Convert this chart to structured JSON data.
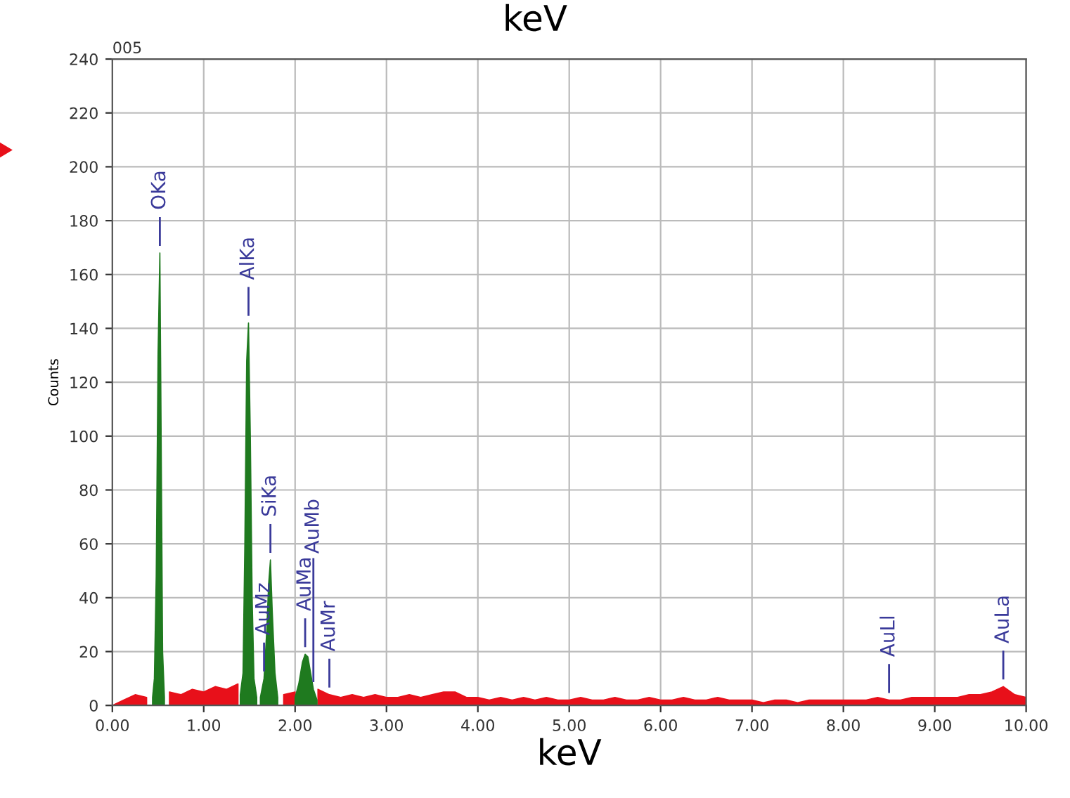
{
  "chart_data": {
    "type": "area",
    "title": "005",
    "xlabel": "keV",
    "ylabel": "Counts",
    "annotations": [
      "keV",
      {
        "text": "OKa",
        "x": 0.52,
        "y": 168
      },
      {
        "text": "AlKa",
        "x": 1.49,
        "y": 142
      },
      {
        "text": "AuMz",
        "x": 1.66,
        "y": 10
      },
      {
        "text": "SiKa",
        "x": 1.73,
        "y": 54
      },
      {
        "text": "AuMa",
        "x": 2.11,
        "y": 19
      },
      {
        "text": "AuMb",
        "x": 2.2,
        "y": 6
      },
      {
        "text": "AuMr",
        "x": 2.375,
        "y": 4
      },
      {
        "text": "AuLl",
        "x": 8.5,
        "y": 2
      },
      {
        "text": "AuLa",
        "x": 9.75,
        "y": 7
      }
    ],
    "series": [
      {
        "color": "#e8101a",
        "x": [
          0,
          0.125,
          0.25,
          0.375,
          0.5,
          0.625,
          0.75,
          0.875,
          1.0,
          1.125,
          1.25,
          1.375,
          1.5,
          1.625,
          1.75,
          1.875,
          2.0,
          2.125,
          2.25,
          2.375,
          2.5,
          2.625,
          2.75,
          2.875,
          3.0,
          3.125,
          3.25,
          3.375,
          3.5,
          3.625,
          3.75,
          3.875,
          4.0,
          4.125,
          4.25,
          4.375,
          4.5,
          4.625,
          4.75,
          4.875,
          5.0,
          5.125,
          5.25,
          5.375,
          5.5,
          5.625,
          5.75,
          5.875,
          6.0,
          6.125,
          6.25,
          6.375,
          6.5,
          6.625,
          6.75,
          6.875,
          7.0,
          7.125,
          7.25,
          7.375,
          7.5,
          7.625,
          7.75,
          7.875,
          8.0,
          8.125,
          8.25,
          8.375,
          8.5,
          8.625,
          8.75,
          8.875,
          9.0,
          9.125,
          9.25,
          9.375,
          9.5,
          9.625,
          9.75,
          9.875,
          10.0
        ],
        "values": [
          0,
          2,
          4,
          3,
          null,
          5,
          4,
          6,
          5,
          7,
          6,
          8,
          null,
          null,
          null,
          4,
          5,
          null,
          6,
          4,
          3,
          4,
          3,
          4,
          3,
          3,
          4,
          3,
          4,
          5,
          5,
          3,
          3,
          2,
          3,
          2,
          3,
          2,
          3,
          2,
          2,
          3,
          2,
          2,
          3,
          2,
          2,
          3,
          2,
          2,
          3,
          2,
          2,
          3,
          2,
          2,
          2,
          1,
          2,
          2,
          1,
          2,
          2,
          2,
          2,
          2,
          2,
          3,
          2,
          2,
          3,
          3,
          3,
          3,
          3,
          4,
          4,
          5,
          7,
          4,
          3
        ]
      },
      {
        "color": "#1f7a1f",
        "x": [
          0.44,
          0.46,
          0.48,
          0.5,
          0.52,
          0.53,
          0.55,
          0.57,
          0.6,
          1.4,
          1.43,
          1.45,
          1.47,
          1.49,
          1.51,
          1.53,
          1.55,
          1.58,
          1.6,
          1.62,
          1.66,
          1.69,
          1.71,
          1.73,
          1.75,
          1.78,
          1.81,
          1.9,
          2.0,
          2.04,
          2.08,
          2.11,
          2.14,
          2.17,
          2.2,
          2.24
        ],
        "values": [
          3,
          10,
          48,
          130,
          168,
          120,
          20,
          3,
          null,
          4,
          12,
          60,
          128,
          142,
          100,
          40,
          10,
          3,
          null,
          3,
          10,
          28,
          45,
          54,
          35,
          12,
          3,
          null,
          3,
          8,
          16,
          19,
          18,
          12,
          6,
          2
        ]
      }
    ],
    "xlim": [
      0,
      10
    ],
    "xticks": [
      {
        "value": 0,
        "label": "0.00"
      },
      {
        "value": 1,
        "label": "1.00"
      },
      {
        "value": 2,
        "label": "2.00"
      },
      {
        "value": 3,
        "label": "3.00"
      },
      {
        "value": 4,
        "label": "4.00"
      },
      {
        "value": 5,
        "label": "5.00"
      },
      {
        "value": 6,
        "label": "6.00"
      },
      {
        "value": 7,
        "label": "7.00"
      },
      {
        "value": 8,
        "label": "8.00"
      },
      {
        "value": 9,
        "label": "9.00"
      },
      {
        "value": 10,
        "label": "10.00"
      }
    ],
    "ylim": [
      0,
      240
    ],
    "yticks": [
      0,
      20,
      40,
      60,
      80,
      100,
      120,
      140,
      160,
      180,
      200,
      220,
      240
    ],
    "grid": true
  }
}
